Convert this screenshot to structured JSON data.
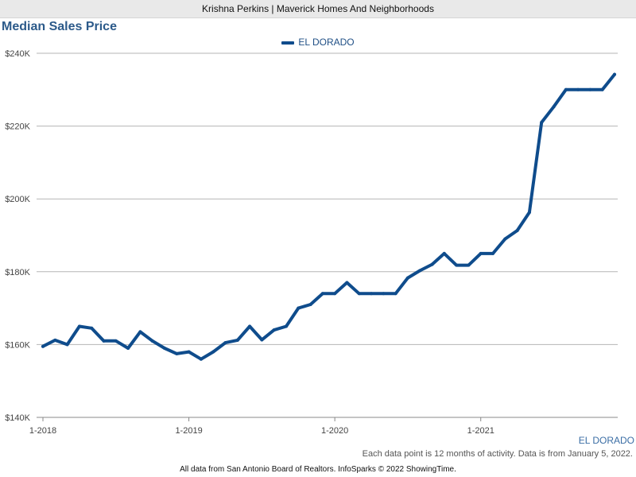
{
  "header": {
    "text": "Krishna Perkins | Maverick Homes And Neighborhoods"
  },
  "footer": {
    "series_label": "EL DORADO",
    "note": "Each data point is 12 months of activity. Data is from January 5, 2022.",
    "source": "All data from San Antonio Board of Realtors. InfoSparks © 2022 ShowingTime."
  },
  "colors": {
    "series": "#0f4c8c",
    "grid": "#b5b5b5",
    "title": "#2c5a8a"
  },
  "chart_data": {
    "type": "line",
    "title": "Median Sales Price",
    "xlabel": "",
    "ylabel": "",
    "ylim": [
      140000,
      240000
    ],
    "yticks": [
      140000,
      160000,
      180000,
      200000,
      220000,
      240000
    ],
    "ytick_labels": [
      "$140K",
      "$160K",
      "$180K",
      "$200K",
      "$220K",
      "$240K"
    ],
    "xtick_labels": [
      "1-2018",
      "1-2019",
      "1-2020",
      "1-2021"
    ],
    "grid": true,
    "legend": "top-center",
    "x": [
      "2018-01",
      "2018-02",
      "2018-03",
      "2018-04",
      "2018-05",
      "2018-06",
      "2018-07",
      "2018-08",
      "2018-09",
      "2018-10",
      "2018-11",
      "2018-12",
      "2019-01",
      "2019-02",
      "2019-03",
      "2019-04",
      "2019-05",
      "2019-06",
      "2019-07",
      "2019-08",
      "2019-09",
      "2019-10",
      "2019-11",
      "2019-12",
      "2020-01",
      "2020-02",
      "2020-03",
      "2020-04",
      "2020-05",
      "2020-06",
      "2020-07",
      "2020-08",
      "2020-09",
      "2020-10",
      "2020-11",
      "2020-12",
      "2021-01",
      "2021-02",
      "2021-03",
      "2021-04",
      "2021-05",
      "2021-06",
      "2021-07",
      "2021-08",
      "2021-09",
      "2021-10",
      "2021-11",
      "2021-12"
    ],
    "series": [
      {
        "name": "EL DORADO",
        "values": [
          159500,
          161200,
          160000,
          165000,
          164500,
          161000,
          161000,
          159000,
          163500,
          161000,
          159000,
          157500,
          158000,
          156000,
          158000,
          160500,
          161200,
          165000,
          161300,
          164000,
          165000,
          170000,
          171000,
          174000,
          174000,
          177000,
          174000,
          174000,
          174000,
          174000,
          178300,
          180300,
          182000,
          185000,
          181800,
          181800,
          185000,
          185000,
          189000,
          191300,
          196300,
          221000,
          225300,
          230000,
          230000,
          230000,
          230000,
          234200
        ]
      }
    ]
  }
}
